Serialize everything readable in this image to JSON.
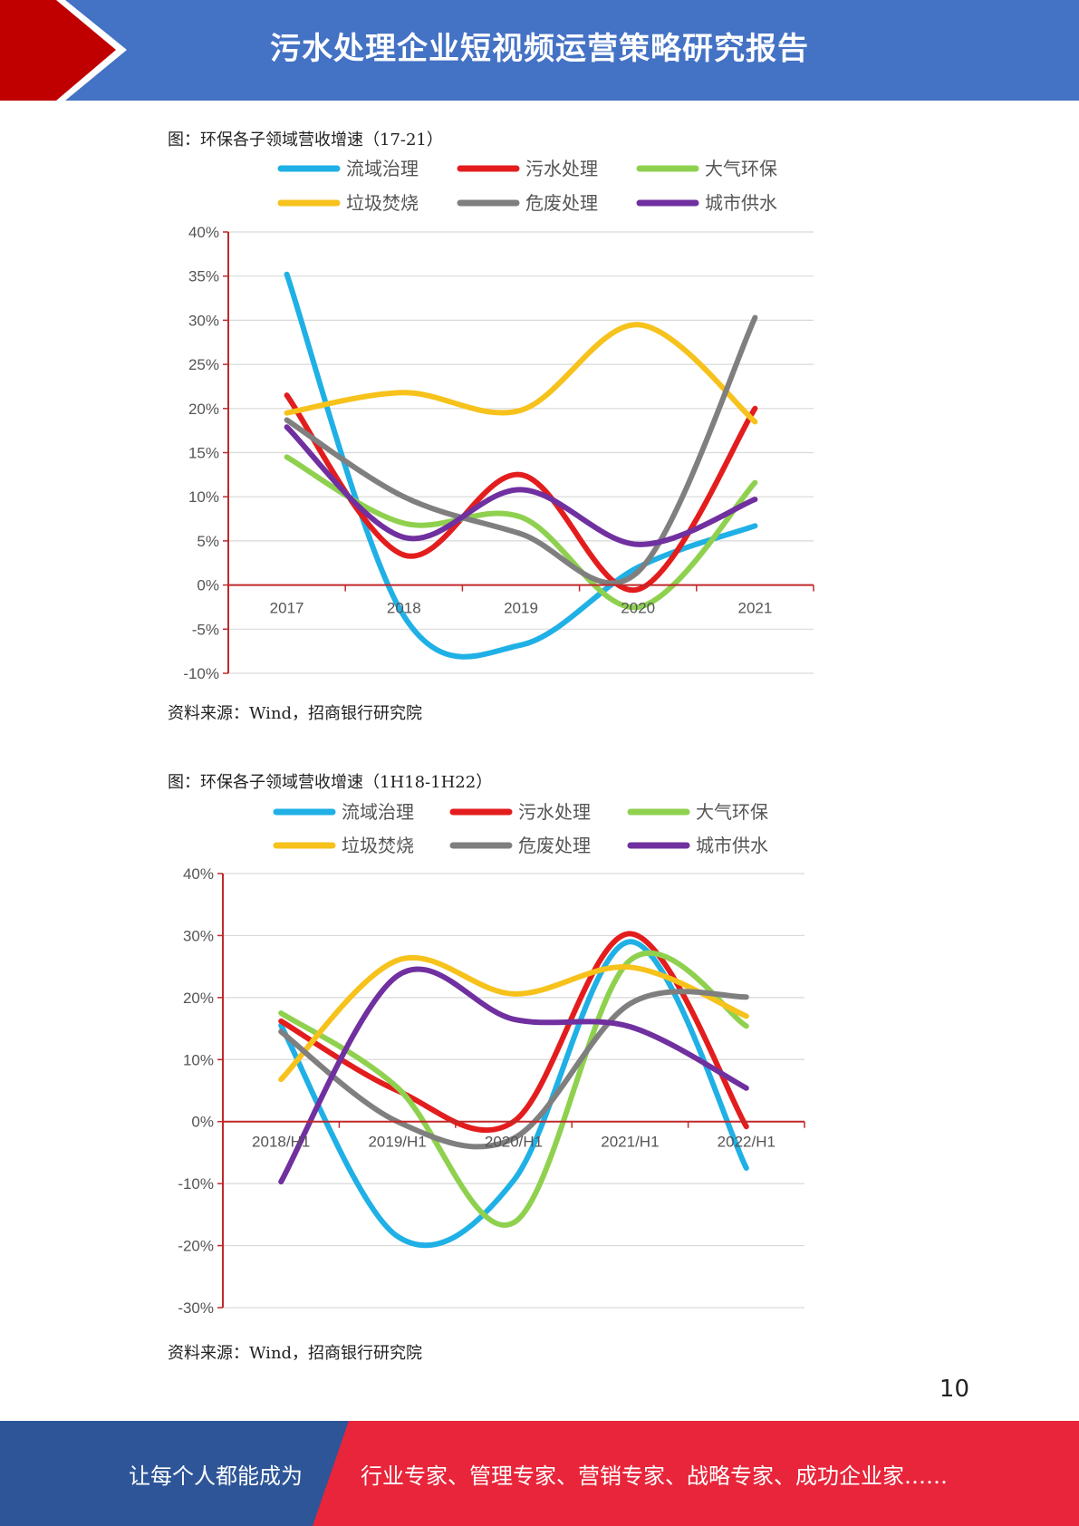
{
  "header": {
    "title": "污水处理企业短视频运营策略研究报告",
    "accent_color": "#4472c4",
    "arrow_color": "#c00000"
  },
  "figures": [
    {
      "caption": "图：环保各子领域营收增速（17-21）",
      "source": "资料来源：Wind，招商银行研究院"
    },
    {
      "caption": "图：环保各子领域营收增速（1H18-1H22）",
      "source": "资料来源：Wind，招商银行研究院"
    }
  ],
  "chart_data": [
    {
      "type": "line",
      "categories": [
        "2017",
        "2018",
        "2019",
        "2020",
        "2021"
      ],
      "ylim": [
        -10,
        40
      ],
      "y_ticks": [
        "40%",
        "35%",
        "30%",
        "25%",
        "20%",
        "15%",
        "10%",
        "5%",
        "0%",
        "-5%",
        "-10%"
      ],
      "grid": true,
      "legend_position": "top",
      "series": [
        {
          "name": "流域治理",
          "color": "#1fb0e6",
          "values": [
            35.2,
            -3.5,
            -6.8,
            2.0,
            6.7
          ]
        },
        {
          "name": "污水处理",
          "color": "#e31d1d",
          "values": [
            21.5,
            3.4,
            12.5,
            -0.5,
            20.0
          ]
        },
        {
          "name": "大气环保",
          "color": "#8fd14f",
          "values": [
            14.5,
            7.0,
            7.7,
            -2.5,
            11.6
          ]
        },
        {
          "name": "垃圾焚烧",
          "color": "#f6c21b",
          "values": [
            19.5,
            21.8,
            19.8,
            29.5,
            18.5
          ]
        },
        {
          "name": "危废处理",
          "color": "#7f7f7f",
          "values": [
            18.7,
            10.0,
            5.8,
            1.5,
            30.3
          ]
        },
        {
          "name": "城市供水",
          "color": "#7030a0",
          "values": [
            17.9,
            5.4,
            10.8,
            4.6,
            9.7
          ]
        }
      ]
    },
    {
      "type": "line",
      "categories": [
        "2018/H1",
        "2019/H1",
        "2020/H1",
        "2021/H1",
        "2022/H1"
      ],
      "ylim": [
        -30,
        40
      ],
      "y_ticks": [
        "40%",
        "30%",
        "20%",
        "10%",
        "0%",
        "-10%",
        "-20%",
        "-30%"
      ],
      "grid": true,
      "legend_position": "top",
      "series": [
        {
          "name": "流域治理",
          "color": "#1fb0e6",
          "values": [
            15.5,
            -18.5,
            -9.5,
            29.0,
            -7.5
          ]
        },
        {
          "name": "污水处理",
          "color": "#e31d1d",
          "values": [
            16.2,
            5.0,
            0.0,
            30.3,
            -0.8
          ]
        },
        {
          "name": "大气环保",
          "color": "#8fd14f",
          "values": [
            17.5,
            5.5,
            -16.3,
            26.0,
            15.4
          ]
        },
        {
          "name": "垃圾焚烧",
          "color": "#f6c21b",
          "values": [
            6.8,
            26.0,
            20.6,
            24.9,
            17.0
          ]
        },
        {
          "name": "危废处理",
          "color": "#7f7f7f",
          "values": [
            14.5,
            0.0,
            -2.7,
            19.0,
            20.1
          ]
        },
        {
          "name": "城市供水",
          "color": "#7030a0",
          "values": [
            -9.7,
            23.5,
            16.5,
            15.3,
            5.4
          ]
        }
      ]
    }
  ],
  "page_number": "10",
  "footer": {
    "slogan_left": "让每个人都能成为",
    "slogan_right": "行业专家、管理专家、营销专家、战略专家、成功企业家……",
    "left_color": "#2e5597",
    "right_color": "#e8253a"
  }
}
